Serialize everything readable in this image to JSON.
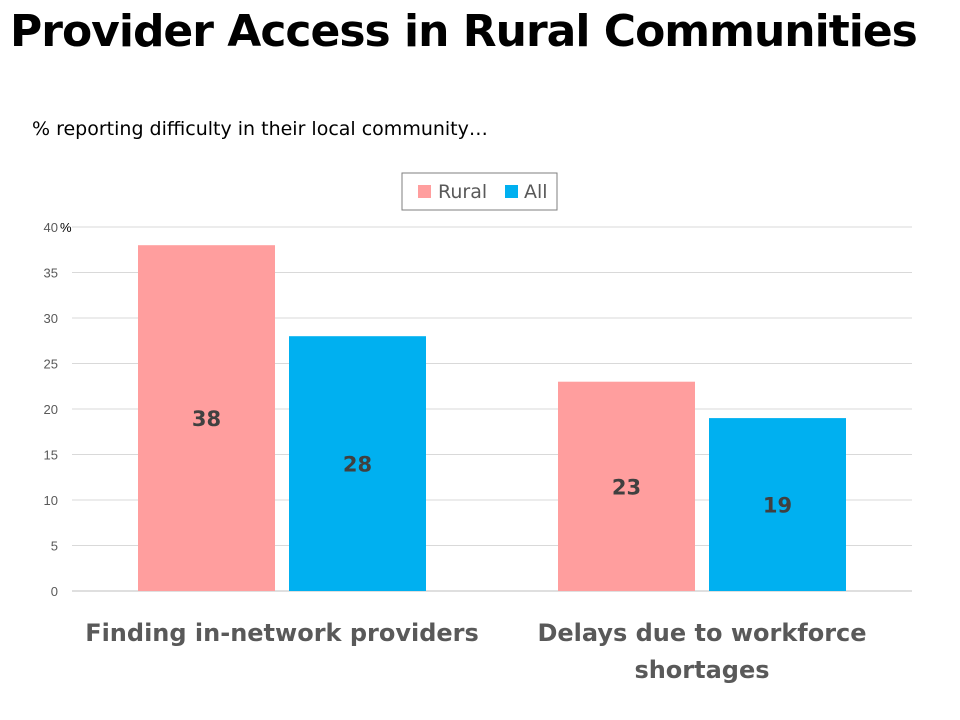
{
  "title": "Provider Access in Rural Communities",
  "subtitle": "% reporting difficulty in their local community…",
  "chart_data": {
    "type": "bar",
    "categories": [
      [
        "Finding in-network providers"
      ],
      [
        "Delays due to workforce",
        "shortages"
      ]
    ],
    "series": [
      {
        "name": "Rural",
        "values": [
          38,
          23
        ],
        "color": "#FF9E9E"
      },
      {
        "name": "All",
        "values": [
          28,
          19
        ],
        "color": "#00B0F0"
      }
    ],
    "ylim": [
      0,
      40
    ],
    "yticks": [
      0,
      5,
      10,
      15,
      20,
      25,
      30,
      35,
      40
    ],
    "y_unit": "%",
    "grid": true,
    "legend_position": "top-center",
    "data_labels": true
  }
}
